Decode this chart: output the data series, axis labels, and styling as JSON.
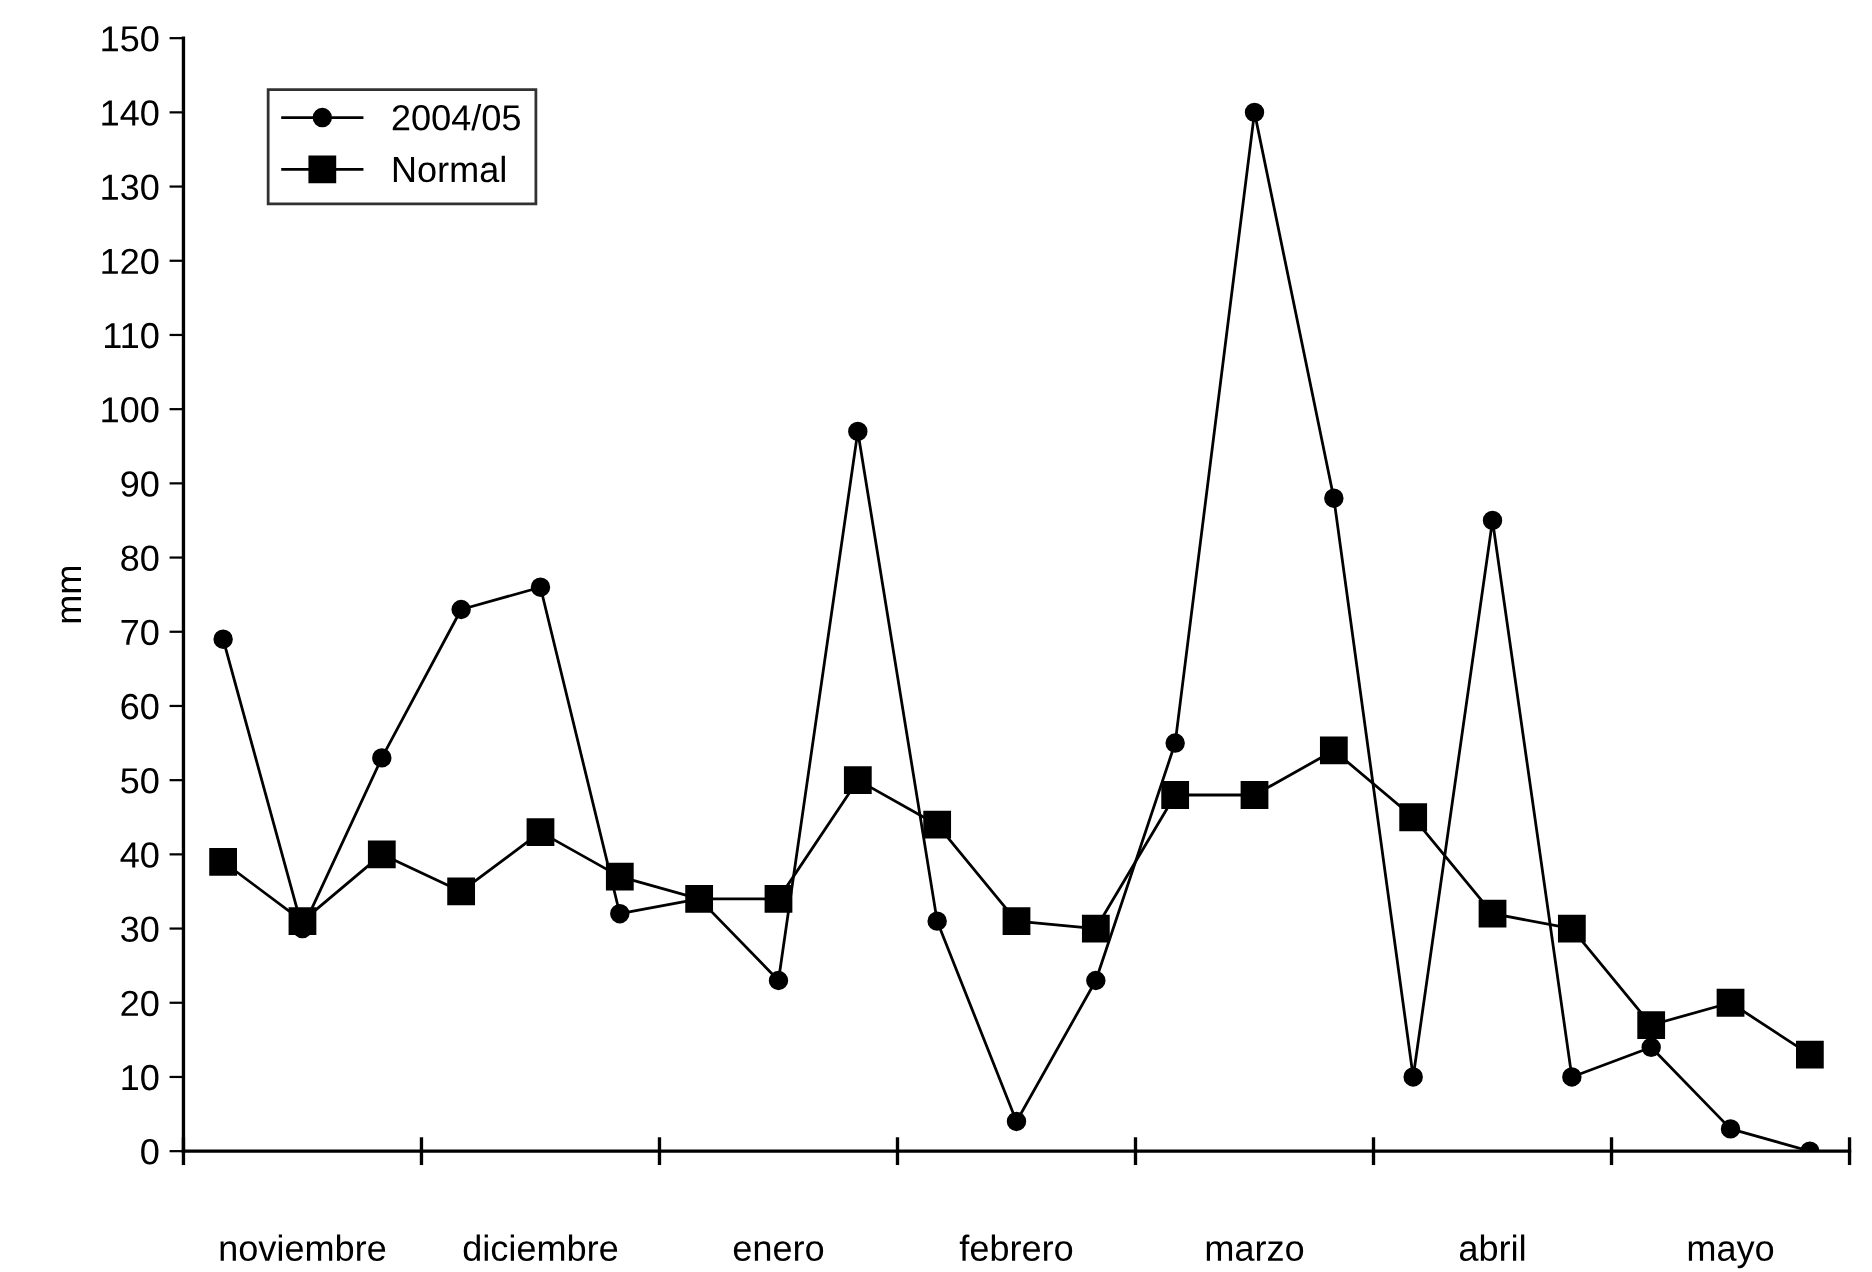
{
  "chart_data": {
    "type": "line",
    "ylabel": "mm",
    "categories": [
      null,
      "noviembre",
      null,
      null,
      "diciembre",
      null,
      null,
      "enero",
      null,
      null,
      "febrero",
      null,
      null,
      "marzo",
      null,
      null,
      "abril",
      null,
      null,
      "mayo",
      null
    ],
    "series": [
      {
        "name": "2004/05",
        "color": "#000000",
        "marker": "circle",
        "values": [
          69,
          30,
          53,
          73,
          76,
          32,
          34,
          23,
          97,
          31,
          4,
          23,
          55,
          140,
          88,
          10,
          85,
          10,
          14,
          3,
          0
        ]
      },
      {
        "name": "Normal",
        "color": "#000000",
        "marker": "square",
        "values": [
          39,
          31,
          40,
          35,
          43,
          37,
          34,
          34,
          50,
          44,
          31,
          30,
          48,
          48,
          54,
          45,
          32,
          30,
          17,
          20,
          13
        ]
      }
    ],
    "ylim": [
      0,
      150
    ],
    "yticks": [
      0,
      10,
      20,
      30,
      40,
      50,
      60,
      70,
      80,
      90,
      100,
      110,
      120,
      130,
      140,
      150
    ],
    "grid": false,
    "legend": "top left",
    "line_style": "solid"
  }
}
